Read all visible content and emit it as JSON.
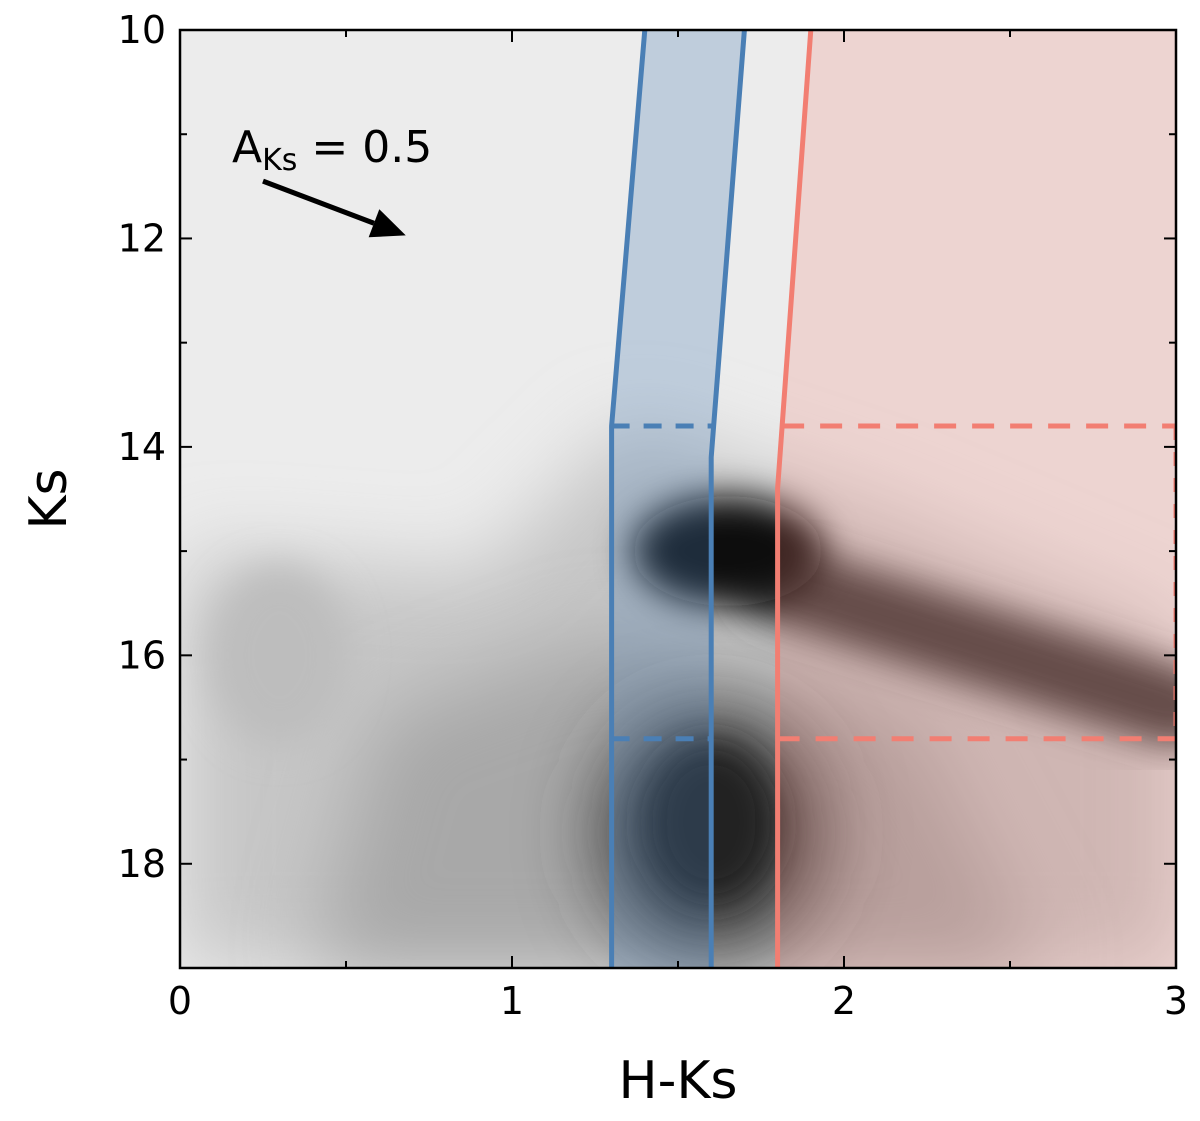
{
  "chart_data": {
    "type": "heatmap",
    "title": "",
    "xlabel": "H-Ks",
    "ylabel": "Ks",
    "xlim": [
      0,
      3
    ],
    "ylim": [
      19,
      10
    ],
    "y_inverted": true,
    "x_ticks": [
      0,
      1,
      2,
      3
    ],
    "x_tick_labels": [
      "0",
      "1",
      "2",
      "3"
    ],
    "y_ticks": [
      10,
      12,
      14,
      16,
      18
    ],
    "y_tick_labels": [
      "10",
      "12",
      "14",
      "16",
      "18"
    ],
    "grid": false,
    "colormap": "greys",
    "density_features": [
      {
        "name": "red clump peak",
        "hk": 1.65,
        "ks": 15.0,
        "strength": 1.0
      },
      {
        "name": "reddened red clump tail",
        "from": [
          1.8,
          15.3
        ],
        "to": [
          3.0,
          16.5
        ]
      },
      {
        "name": "lower main concentration",
        "hk": 1.6,
        "ks": 17.7,
        "strength": 0.85
      },
      {
        "name": "faint foreground branch",
        "hk": 0.3,
        "ks": 16.0,
        "strength": 0.3
      }
    ],
    "regions": [
      {
        "name": "blue band",
        "color": "#4a7fb5",
        "left_edge": [
          [
            1.4,
            10
          ],
          [
            1.3,
            13.8
          ],
          [
            1.3,
            19
          ]
        ],
        "right_edge": [
          [
            1.7,
            10
          ],
          [
            1.6,
            14.1
          ],
          [
            1.6,
            19
          ]
        ],
        "magnitude_cuts": [
          13.8,
          16.8
        ]
      },
      {
        "name": "red region",
        "color": "#f27e72",
        "left_edge": [
          [
            1.9,
            10
          ],
          [
            1.8,
            14.4
          ],
          [
            1.8,
            19
          ]
        ],
        "right_limit": 3.0,
        "magnitude_cuts": [
          13.8,
          16.8
        ]
      }
    ],
    "annotations": {
      "extinction_text_main": "A",
      "extinction_text_sub": "Ks",
      "extinction_text_value": " = 0.5",
      "arrow_from": [
        0.25,
        11.45
      ],
      "arrow_to": [
        0.68,
        11.97
      ]
    }
  }
}
